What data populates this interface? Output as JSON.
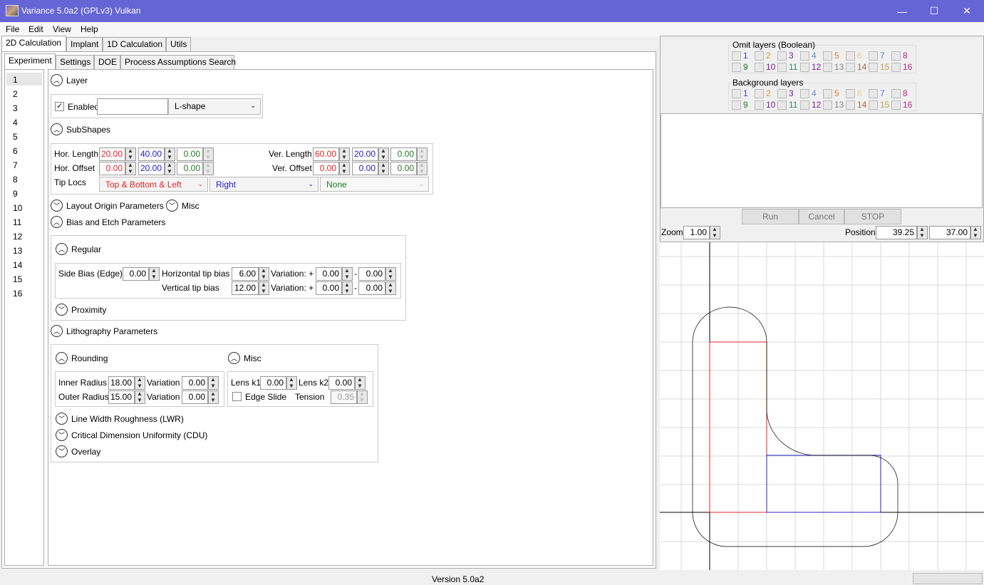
{
  "window": {
    "title": "Variance 5.0a2 (GPLv3) Vulkan",
    "minimize": "—",
    "maximize": "☐",
    "close": "✕"
  },
  "menu": [
    "File",
    "Edit",
    "View",
    "Help"
  ],
  "top_tabs": [
    "2D Calculation",
    "Implant",
    "1D Calculation",
    "Utils"
  ],
  "sub_tabs": [
    "Experiment",
    "Settings",
    "DOE",
    "Process Assumptions Search"
  ],
  "layer_list": [
    "1",
    "2",
    "3",
    "4",
    "5",
    "6",
    "7",
    "8",
    "9",
    "10",
    "11",
    "12",
    "13",
    "14",
    "15",
    "16"
  ],
  "layer": {
    "heading": "Layer",
    "enabled_label": "Enabled",
    "name_value": "",
    "shape": "L-shape"
  },
  "subshapes": {
    "heading": "SubShapes",
    "hor_length_label": "Hor. Length",
    "hor_offset_label": "Hor. Offset",
    "ver_length_label": "Ver. Length",
    "ver_offset_label": "Ver. Offset",
    "tip_locs_label": "Tip Locs",
    "hor_length": [
      "20.00",
      "40.00",
      "0.00"
    ],
    "hor_offset": [
      "0.00",
      "20.00",
      "0.00"
    ],
    "ver_length": [
      "60.00",
      "20.00",
      "0.00"
    ],
    "ver_offset": [
      "0.00",
      "0.00",
      "0.00"
    ],
    "tip_locs": [
      "Top & Bottom & Left",
      "Right",
      "None"
    ]
  },
  "layout_origin_heading": "Layout Origin Parameters",
  "misc_heading": "Misc",
  "bias": {
    "heading": "Bias and Etch Parameters",
    "regular_heading": "Regular",
    "side_bias_label": "Side Bias (Edge)",
    "side_bias": "0.00",
    "htip_label": "Horizontal tip bias",
    "htip": "6.00",
    "vtip_label": "Vertical tip bias",
    "vtip": "12.00",
    "variation_label": "Variation: +",
    "dash": "-",
    "hvar_plus": "0.00",
    "hvar_minus": "0.00",
    "vvar_plus": "0.00",
    "vvar_minus": "0.00",
    "proximity_heading": "Proximity"
  },
  "litho": {
    "heading": "Lithography Parameters",
    "rounding_heading": "Rounding",
    "misc_heading": "Misc",
    "inner_radius_label": "Inner Radius",
    "inner_radius": "18.00",
    "outer_radius_label": "Outer Radius",
    "outer_radius": "15.00",
    "variation_label": "Variation",
    "inner_var": "0.00",
    "outer_var": "0.00",
    "lens_k1_label": "Lens k1",
    "lens_k1": "0.00",
    "lens_k2_label": "Lens k2",
    "lens_k2": "0.00",
    "edge_slide_label": "Edge Slide",
    "tension_label": "Tension",
    "tension": "0.35",
    "lwr_heading": "Line Width Roughness (LWR)",
    "cdu_heading": "Critical Dimension Uniformity (CDU)",
    "overlay_heading": "Overlay"
  },
  "right": {
    "omit_title": "Omit layers (Boolean)",
    "background_title": "Background layers",
    "layer_nums": [
      "1",
      "2",
      "3",
      "4",
      "5",
      "6",
      "7",
      "8",
      "9",
      "10",
      "11",
      "12",
      "13",
      "14",
      "15",
      "16"
    ],
    "layer_colors": [
      "#3b3bd8",
      "#e09a2e",
      "#7a1f9a",
      "#5a8ae0",
      "#e0782e",
      "#f0d090",
      "#3b8ad8",
      "#b02a7a",
      "#1f7a1f",
      "#7a1f9a",
      "#3a8a6a",
      "#7a1f9a",
      "#888888",
      "#a06a4a",
      "#c0a060",
      "#b02a7a"
    ],
    "run": "Run",
    "cancel": "Cancel",
    "stop": "STOP",
    "zoom_label": "Zoom",
    "zoom": "1.00",
    "position_label": "Position",
    "pos_x": "39.25",
    "pos_y": "37.00"
  },
  "status": {
    "version": "Version 5.0a2"
  },
  "colors": {
    "title_bar": "#6565d6",
    "red": "#e0252a",
    "blue": "#2020c8",
    "green": "#1f7a1f"
  }
}
